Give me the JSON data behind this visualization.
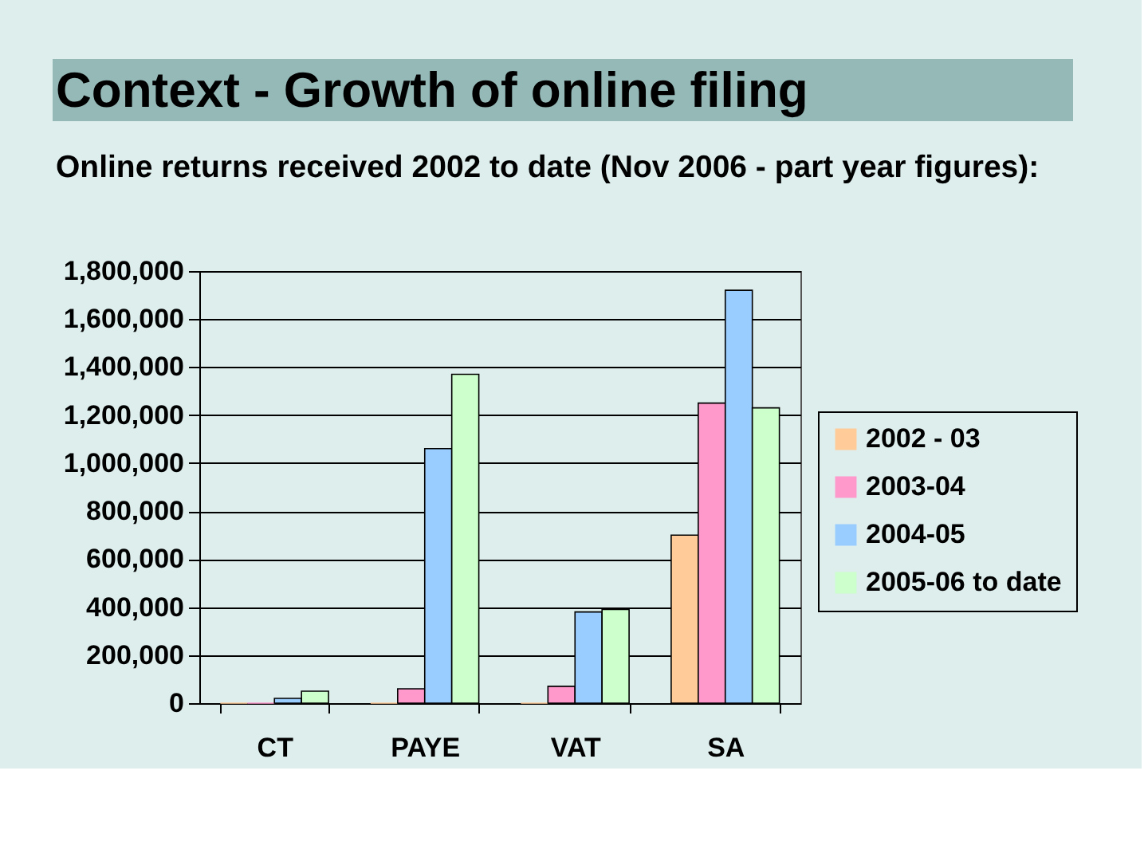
{
  "chart_data": {
    "type": "bar",
    "title": "Context - Growth of online filing",
    "subtitle": "Online returns received 2002 to date (Nov 2006 - part year figures):",
    "categories": [
      "CT",
      "PAYE",
      "VAT",
      "SA"
    ],
    "series": [
      {
        "name": "2002 - 03",
        "color": "#ffcc99",
        "values": [
          0,
          0,
          0,
          700000
        ]
      },
      {
        "name": "2003-04",
        "color": "#ff99cc",
        "values": [
          0,
          60000,
          70000,
          1250000
        ]
      },
      {
        "name": "2004-05",
        "color": "#99ccff",
        "values": [
          20000,
          1060000,
          380000,
          1720000
        ]
      },
      {
        "name": "2005-06 to date",
        "color": "#ccffcc",
        "values": [
          50000,
          1370000,
          390000,
          1230000
        ]
      }
    ],
    "ylim": [
      0,
      1800000
    ],
    "yticks": [
      {
        "value": 0,
        "label": "0"
      },
      {
        "value": 200000,
        "label": "200,000"
      },
      {
        "value": 400000,
        "label": "400,000"
      },
      {
        "value": 600000,
        "label": "600,000"
      },
      {
        "value": 800000,
        "label": "800,000"
      },
      {
        "value": 1000000,
        "label": "1,000,000"
      },
      {
        "value": 1200000,
        "label": "1,200,000"
      },
      {
        "value": 1400000,
        "label": "1,400,000"
      },
      {
        "value": 1600000,
        "label": "1,600,000"
      },
      {
        "value": 1800000,
        "label": "1,800,000"
      }
    ],
    "grid": "y",
    "legend": "right"
  }
}
